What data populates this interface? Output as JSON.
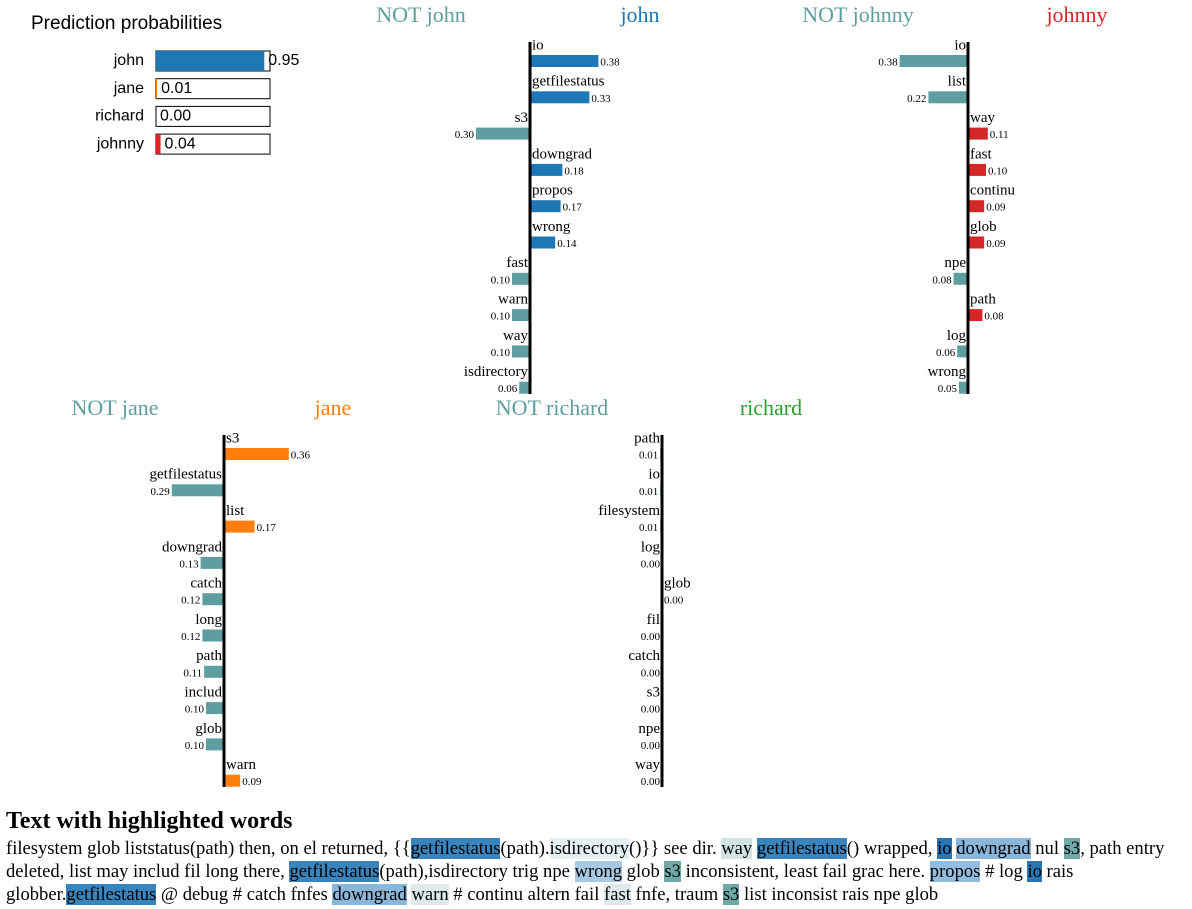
{
  "prediction_probabilities": {
    "title": "Prediction probabilities",
    "categories": [
      "john",
      "jane",
      "richard",
      "johnny"
    ],
    "values": [
      0.95,
      0.01,
      0.0,
      0.04
    ],
    "value_labels": [
      "0.95",
      "0.01",
      "0.00",
      "0.04"
    ],
    "colors": [
      "#1f77b4",
      "#ff7f0e",
      "#2ca02c",
      "#d62728"
    ]
  },
  "explanations": [
    {
      "negative_label": "NOT john",
      "positive_label": "john",
      "color": "#1f77b4",
      "negative_color": "#5f9ea0",
      "features": [
        "io",
        "getfilestatus",
        "s3",
        "downgrad",
        "propos",
        "wrong",
        "fast",
        "warn",
        "way",
        "isdirectory"
      ],
      "values": [
        0.38,
        0.33,
        0.3,
        0.18,
        0.17,
        0.14,
        0.1,
        0.1,
        0.1,
        0.06
      ],
      "value_labels": [
        "0.38",
        "0.33",
        "0.30",
        "0.18",
        "0.17",
        "0.14",
        "0.10",
        "0.10",
        "0.10",
        "0.06"
      ],
      "sides": [
        "positive",
        "positive",
        "negative",
        "positive",
        "positive",
        "positive",
        "negative",
        "negative",
        "negative",
        "negative"
      ]
    },
    {
      "negative_label": "NOT johnny",
      "positive_label": "johnny",
      "color": "#d62728",
      "negative_color": "#5f9ea0",
      "features": [
        "io",
        "list",
        "way",
        "fast",
        "continu",
        "glob",
        "npe",
        "path",
        "log",
        "wrong"
      ],
      "values": [
        0.38,
        0.22,
        0.11,
        0.1,
        0.09,
        0.09,
        0.08,
        0.08,
        0.06,
        0.05
      ],
      "value_labels": [
        "0.38",
        "0.22",
        "0.11",
        "0.10",
        "0.09",
        "0.09",
        "0.08",
        "0.08",
        "0.06",
        "0.05"
      ],
      "sides": [
        "negative",
        "negative",
        "positive",
        "positive",
        "positive",
        "positive",
        "negative",
        "positive",
        "negative",
        "negative"
      ]
    },
    {
      "negative_label": "NOT jane",
      "positive_label": "jane",
      "color": "#ff7f0e",
      "negative_color": "#5f9ea0",
      "features": [
        "s3",
        "getfilestatus",
        "list",
        "downgrad",
        "catch",
        "long",
        "path",
        "includ",
        "glob",
        "warn"
      ],
      "values": [
        0.36,
        0.29,
        0.17,
        0.13,
        0.12,
        0.12,
        0.11,
        0.1,
        0.1,
        0.09
      ],
      "value_labels": [
        "0.36",
        "0.29",
        "0.17",
        "0.13",
        "0.12",
        "0.12",
        "0.11",
        "0.10",
        "0.10",
        "0.09"
      ],
      "sides": [
        "positive",
        "negative",
        "positive",
        "negative",
        "negative",
        "negative",
        "negative",
        "negative",
        "negative",
        "positive"
      ]
    },
    {
      "negative_label": "NOT richard",
      "positive_label": "richard",
      "color": "#2ca02c",
      "negative_color": "#5f9ea0",
      "features": [
        "path",
        "io",
        "filesystem",
        "log",
        "glob",
        "fil",
        "catch",
        "s3",
        "npe",
        "way"
      ],
      "values": [
        0.01,
        0.01,
        0.01,
        0.0,
        0.0,
        0.0,
        0.0,
        0.0,
        0.0,
        0.0
      ],
      "value_labels": [
        "0.01",
        "0.01",
        "0.01",
        "0.00",
        "0.00",
        "0.00",
        "0.00",
        "0.00",
        "0.00",
        "0.00"
      ],
      "sides": [
        "negative",
        "negative",
        "negative",
        "negative",
        "positive",
        "negative",
        "negative",
        "negative",
        "negative",
        "negative"
      ]
    }
  ],
  "text": {
    "title": "Text with highlighted words",
    "segments": [
      {
        "text": "filesystem glob liststatus(path) then, on el returned, {{"
      },
      {
        "text": "getfilestatus",
        "color": "#3a84bd"
      },
      {
        "text": "(path)."
      },
      {
        "text": "isdirectory",
        "color": "#e6f0f3"
      },
      {
        "text": "()}} see dir. "
      },
      {
        "text": "way",
        "color": "#d2e3e3"
      },
      {
        "text": " "
      },
      {
        "text": "getfilestatus",
        "color": "#3a84bd"
      },
      {
        "text": "() wrapped, "
      },
      {
        "text": "io",
        "color": "#2a75b3"
      },
      {
        "text": " "
      },
      {
        "text": "downgrad",
        "color": "#8ab6d9"
      },
      {
        "text": " nul "
      },
      {
        "text": "s3",
        "color": "#6fa8a8"
      },
      {
        "text": ", path entry deleted, list may includ fil long there, "
      },
      {
        "text": "getfilestatus",
        "color": "#3a84bd"
      },
      {
        "text": "(path),isdirectory trig npe "
      },
      {
        "text": "wrong",
        "color": "#a8c9e3"
      },
      {
        "text": " glob "
      },
      {
        "text": "s3",
        "color": "#6fa8a8"
      },
      {
        "text": " inconsistent, least fail grac here. "
      },
      {
        "text": "propos",
        "color": "#92bde0"
      },
      {
        "text": " # log "
      },
      {
        "text": "io",
        "color": "#2a75b3"
      },
      {
        "text": " rais globber."
      },
      {
        "text": "getfilestatus",
        "color": "#3a84bd"
      },
      {
        "text": " @ debug # catch fnfes "
      },
      {
        "text": "downgrad",
        "color": "#8ab6d9"
      },
      {
        "text": " "
      },
      {
        "text": "warn",
        "color": "#dfeaea"
      },
      {
        "text": " # continu altern fail "
      },
      {
        "text": "fast",
        "color": "#dde9ec"
      },
      {
        "text": " fnfe, traum "
      },
      {
        "text": "s3",
        "color": "#6fa8a8"
      },
      {
        "text": " list inconsist rais npe glob"
      }
    ]
  }
}
